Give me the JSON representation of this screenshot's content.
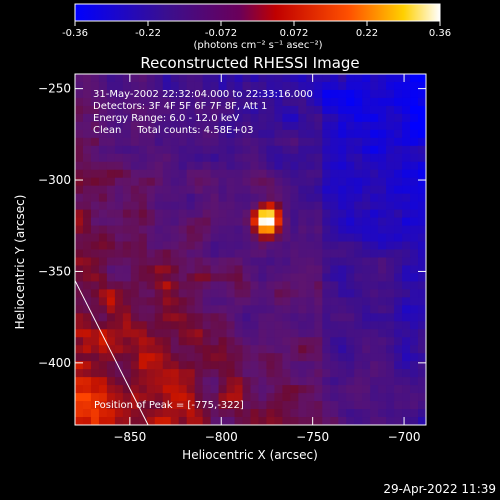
{
  "colorbar": {
    "ticks": [
      "-0.36",
      "-0.22",
      "-0.072",
      "0.072",
      "0.22",
      "0.36"
    ],
    "unit_label": "(photons cm⁻² s⁻¹ asec⁻²)"
  },
  "title": "Reconstructed RHESSI Image",
  "info": {
    "line1": "31-May-2002 22:32:04.000 to 22:33:16.000",
    "line2": "Detectors: 3F 4F 5F 6F 7F 8F, Att 1",
    "line3": "Energy Range: 6.0 - 12.0 keV",
    "line4": "Clean     Total counts: 4.58E+03"
  },
  "peak_label": "Position of Peak = [-775,-322]",
  "footer_date": "29-Apr-2022 11:39",
  "chart_data": {
    "type": "heatmap",
    "title": "Reconstructed RHESSI Image",
    "xlabel": "Heliocentric X (arcsec)",
    "ylabel": "Heliocentric Y (arcsec)",
    "xlim": [
      -880,
      -688
    ],
    "ylim": [
      -434,
      -242
    ],
    "x_ticks": [
      -850,
      -800,
      -750,
      -700
    ],
    "y_ticks": [
      -400,
      -350,
      -300,
      -250
    ],
    "colorbar_range": [
      -0.36,
      0.36
    ],
    "colormap": "blue-purple-red-yellow-white",
    "peak": [
      -775,
      -322
    ],
    "limb_line": [
      [
        -880,
        -355
      ],
      [
        -840,
        -434
      ]
    ]
  }
}
